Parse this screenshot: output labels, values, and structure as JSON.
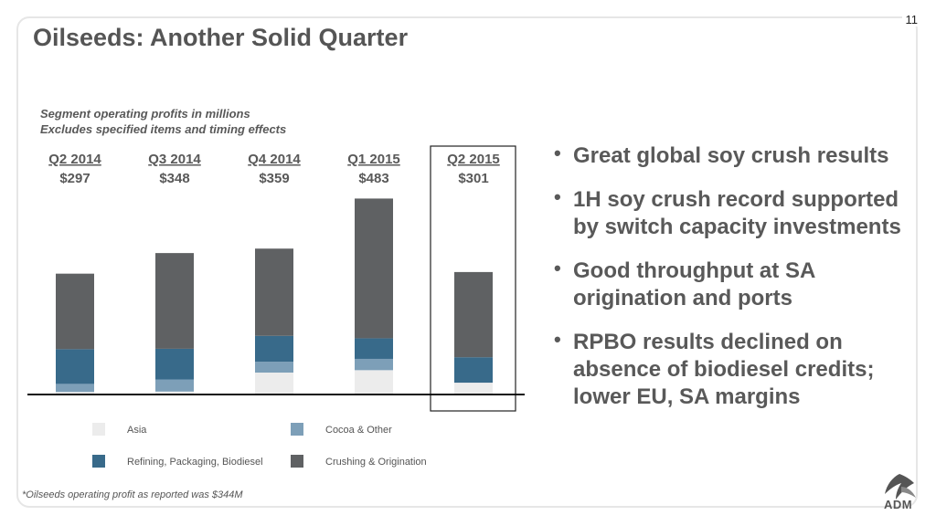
{
  "page_number": "11",
  "title": "Oilseeds: Another Solid Quarter",
  "subtitle_lines": [
    "Segment operating profits in millions",
    "Excludes specified items and timing effects"
  ],
  "bullets": [
    "Great global soy crush results",
    "1H soy crush record supported by switch capacity investments",
    "Good throughput at SA origination and ports",
    "RPBO results declined on absence of biodiesel credits; lower EU, SA margins"
  ],
  "footnote": "*Oilseeds operating profit as reported was $344M",
  "logo_text": "ADM",
  "colors": {
    "asia": "#ececec",
    "cocoa_other": "#7d9fb8",
    "refining": "#386a8a",
    "crushing": "#5f6163",
    "header_text": "#595959"
  },
  "chart_data": {
    "type": "bar",
    "stacked": true,
    "categories": [
      "Q2 2014",
      "Q3 2014",
      "Q4 2014",
      "Q1 2015",
      "Q2 2015"
    ],
    "totals": [
      "$297",
      "$348",
      "$359",
      "$483",
      "$301"
    ],
    "highlighted_category": "Q2 2015",
    "series": [
      {
        "name": "Asia",
        "color": "#ececec",
        "values": [
          4,
          5,
          52,
          58,
          27
        ]
      },
      {
        "name": "Cocoa & Other",
        "color": "#7d9fb8",
        "values": [
          20,
          30,
          27,
          28,
          0
        ]
      },
      {
        "name": "Refining, Packaging, Biodiesel",
        "color": "#386a8a",
        "values": [
          86,
          76,
          64,
          51,
          63
        ]
      },
      {
        "name": "Crushing & Origination",
        "color": "#5f6163",
        "values": [
          187,
          237,
          216,
          346,
          211
        ]
      }
    ],
    "ylim": [
      0,
      500
    ],
    "legend_position": "bottom",
    "grid": false
  }
}
